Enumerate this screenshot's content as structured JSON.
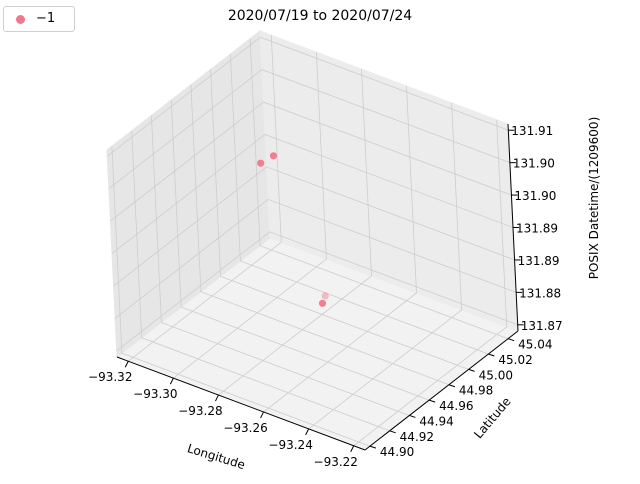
{
  "chart_data": {
    "type": "scatter3d",
    "title": "2020/07/19 to 2020/07/24",
    "xlabel": "Longitude",
    "ylabel": "Latitude",
    "zlabel": "POSIX Datetime/(1209600)",
    "x_ticks": [
      "−93.32",
      "−93.30",
      "−93.28",
      "−93.26",
      "−93.24",
      "−93.22"
    ],
    "y_ticks": [
      "44.90",
      "44.92",
      "44.94",
      "44.96",
      "44.98",
      "45.00",
      "45.02",
      "45.04"
    ],
    "z_ticks": [
      "131.87",
      "131.88",
      "131.89",
      "131.89",
      "131.90",
      "131.90",
      "131.91"
    ],
    "xlim": [
      -93.325,
      -93.215
    ],
    "ylim": [
      44.895,
      45.05
    ],
    "zlim": [
      131.8715,
      131.9125
    ],
    "legend_position": "top-left",
    "grid": true,
    "series": [
      {
        "name": "−1",
        "color": "#f0788c",
        "points": [
          {
            "x": -93.28,
            "y": 44.96,
            "z": 131.909
          },
          {
            "x": -93.285,
            "y": 44.958,
            "z": 131.907
          },
          {
            "x": -93.262,
            "y": 44.965,
            "z": 131.8835
          },
          {
            "x": -93.262,
            "y": 44.962,
            "z": 131.8825
          }
        ]
      }
    ]
  }
}
